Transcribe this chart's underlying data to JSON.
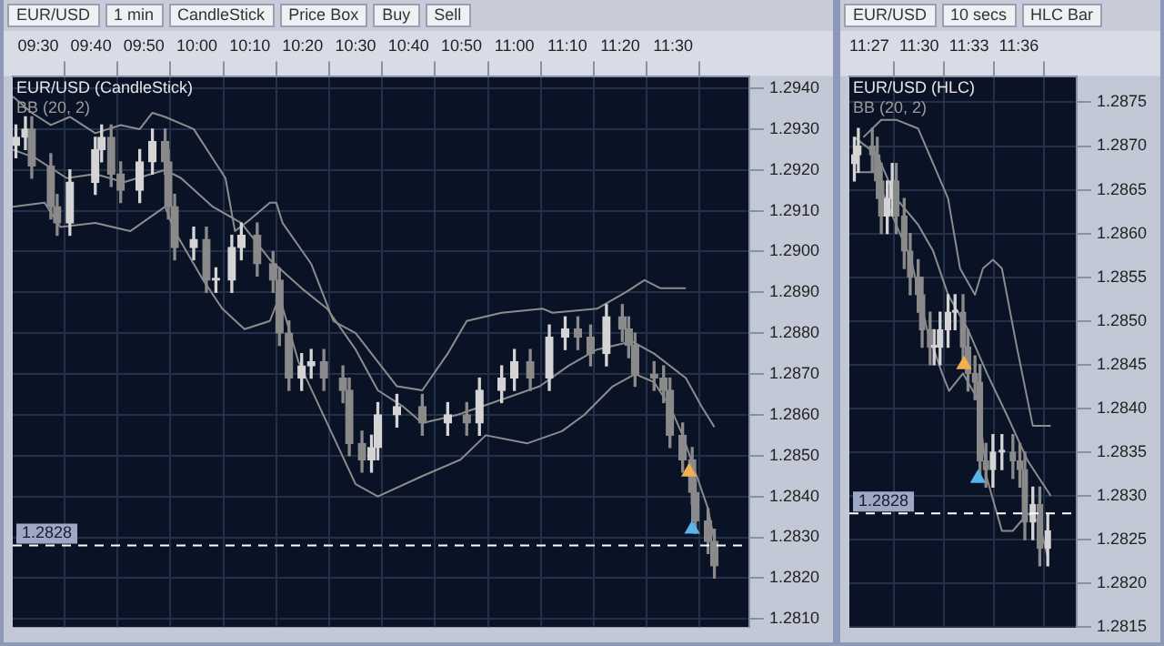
{
  "chart_data": [
    {
      "type": "candlestick",
      "title": "EUR/USD (CandleStick)",
      "subtitle": "BB (20, 2)",
      "annotations": [
        "EUR/USD",
        "1 min",
        "CandleStick",
        "Price Box",
        "Buy",
        "Sell"
      ],
      "x": [
        9.43,
        9.46,
        9.48,
        9.54,
        9.56,
        9.6,
        9.68,
        9.7,
        9.73,
        9.76,
        9.82,
        9.86,
        9.9,
        9.91,
        9.93,
        9.99,
        10.03,
        10.06,
        10.11,
        10.14,
        10.19,
        10.24,
        10.26,
        10.29,
        10.33,
        10.36,
        10.4,
        10.46,
        10.48,
        10.52,
        10.55,
        10.57,
        10.63,
        10.71,
        10.79,
        10.85,
        10.89,
        10.96,
        11.0,
        11.05,
        11.11,
        11.16,
        11.2,
        11.24,
        11.29,
        11.34,
        11.36,
        11.38,
        11.44,
        11.47,
        11.49,
        11.53,
        11.56,
        11.57,
        11.61,
        11.63
      ],
      "ohlc": [
        [
          1.2926,
          1.2931,
          1.2923,
          1.2928
        ],
        [
          1.2928,
          1.2933,
          1.2925,
          1.293
        ],
        [
          1.293,
          1.2933,
          1.2918,
          1.2921
        ],
        [
          1.2921,
          1.2924,
          1.2908,
          1.2911
        ],
        [
          1.2911,
          1.2914,
          1.2904,
          1.2907
        ],
        [
          1.2907,
          1.292,
          1.2904,
          1.2917
        ],
        [
          1.2917,
          1.2928,
          1.2914,
          1.2925
        ],
        [
          1.2925,
          1.2931,
          1.2922,
          1.2928
        ],
        [
          1.2928,
          1.2931,
          1.2916,
          1.2919
        ],
        [
          1.2919,
          1.2922,
          1.2912,
          1.2915
        ],
        [
          1.2915,
          1.2925,
          1.2912,
          1.2922
        ],
        [
          1.2922,
          1.293,
          1.2919,
          1.2927
        ],
        [
          1.2927,
          1.293,
          1.2919,
          1.2922
        ],
        [
          1.2922,
          1.2925,
          1.2908,
          1.2911
        ],
        [
          1.2911,
          1.2914,
          1.2898,
          1.2901
        ],
        [
          1.2901,
          1.2906,
          1.2898,
          1.2903
        ],
        [
          1.2903,
          1.2906,
          1.289,
          1.2893
        ],
        [
          1.2893,
          1.2896,
          1.289,
          1.2893
        ],
        [
          1.2893,
          1.2904,
          1.289,
          1.2901
        ],
        [
          1.2901,
          1.2907,
          1.2898,
          1.2904
        ],
        [
          1.2904,
          1.2907,
          1.2894,
          1.2897
        ],
        [
          1.2897,
          1.29,
          1.289,
          1.2893
        ],
        [
          1.2893,
          1.2896,
          1.2877,
          1.288
        ],
        [
          1.288,
          1.2883,
          1.2866,
          1.2869
        ],
        [
          1.2869,
          1.2875,
          1.2866,
          1.2872
        ],
        [
          1.2872,
          1.2876,
          1.2869,
          1.2873
        ],
        [
          1.2873,
          1.2876,
          1.2866,
          1.2869
        ],
        [
          1.2869,
          1.2872,
          1.2863,
          1.2866
        ],
        [
          1.2866,
          1.2869,
          1.285,
          1.2853
        ],
        [
          1.2853,
          1.2856,
          1.2846,
          1.2849
        ],
        [
          1.2849,
          1.2855,
          1.2846,
          1.2852
        ],
        [
          1.2852,
          1.2863,
          1.2849,
          1.286
        ],
        [
          1.286,
          1.2865,
          1.2857,
          1.2862
        ],
        [
          1.2862,
          1.2865,
          1.2855,
          1.2858
        ],
        [
          1.2858,
          1.2863,
          1.2855,
          1.286
        ],
        [
          1.286,
          1.2863,
          1.2855,
          1.2858
        ],
        [
          1.2858,
          1.2869,
          1.2855,
          1.2866
        ],
        [
          1.2866,
          1.2872,
          1.2863,
          1.2869
        ],
        [
          1.2869,
          1.2876,
          1.2866,
          1.2873
        ],
        [
          1.2873,
          1.2876,
          1.2866,
          1.2869
        ],
        [
          1.2869,
          1.2882,
          1.2866,
          1.2879
        ],
        [
          1.2879,
          1.2884,
          1.2876,
          1.2881
        ],
        [
          1.2881,
          1.2884,
          1.2876,
          1.2879
        ],
        [
          1.2879,
          1.2882,
          1.2872,
          1.2875
        ],
        [
          1.2875,
          1.2887,
          1.2872,
          1.2884
        ],
        [
          1.2884,
          1.2887,
          1.2878,
          1.2881
        ],
        [
          1.2881,
          1.2884,
          1.2874,
          1.2877
        ],
        [
          1.2877,
          1.288,
          1.2867,
          1.287
        ],
        [
          1.287,
          1.2873,
          1.2866,
          1.2869
        ],
        [
          1.2869,
          1.2872,
          1.2863,
          1.2866
        ],
        [
          1.2866,
          1.2869,
          1.2852,
          1.2855
        ],
        [
          1.2855,
          1.2858,
          1.2846,
          1.2849
        ],
        [
          1.2849,
          1.2852,
          1.2838,
          1.2841
        ],
        [
          1.2841,
          1.2844,
          1.2831,
          1.2834
        ],
        [
          1.2834,
          1.2837,
          1.2826,
          1.2829
        ],
        [
          1.2829,
          1.2832,
          1.282,
          1.2823
        ]
      ],
      "series": [
        {
          "type": "line",
          "color": "#8c8c8c",
          "x": [
            9.42,
            9.48,
            9.54,
            9.6,
            9.68,
            9.76,
            9.82,
            9.86,
            9.9,
            9.99,
            10.09,
            10.12,
            10.17,
            10.23,
            10.25,
            10.27,
            10.36,
            10.43,
            10.5,
            10.57,
            10.63,
            10.71,
            10.79,
            10.85,
            10.96,
            11.09,
            11.12,
            11.26,
            11.35,
            11.41,
            11.46,
            11.51,
            11.54
          ],
          "values": [
            1.2938,
            1.2934,
            1.2931,
            1.2933,
            1.2929,
            1.2931,
            1.293,
            1.2934,
            1.2933,
            1.293,
            1.2918,
            1.2905,
            1.2908,
            1.2912,
            1.2912,
            1.2907,
            1.2897,
            1.2883,
            1.288,
            1.2873,
            1.2867,
            1.2866,
            1.2875,
            1.2883,
            1.2885,
            1.2886,
            1.2885,
            1.2886,
            1.289,
            1.2893,
            1.2891,
            1.2891,
            1.2891
          ]
        },
        {
          "type": "line",
          "color": "#8c8c8c",
          "x": [
            9.42,
            9.49,
            9.59,
            9.68,
            9.77,
            9.9,
            9.95,
            10.05,
            10.14,
            10.23,
            10.33,
            10.41,
            10.5,
            10.57,
            10.65,
            10.71,
            10.82,
            10.97,
            11.08,
            11.17,
            11.26,
            11.37,
            11.44,
            11.54,
            11.59,
            11.63
          ],
          "values": [
            1.2925,
            1.2923,
            1.2918,
            1.2919,
            1.2917,
            1.292,
            1.2918,
            1.2911,
            1.2907,
            1.2898,
            1.2891,
            1.2886,
            1.2876,
            1.2866,
            1.2862,
            1.2858,
            1.286,
            1.2864,
            1.2867,
            1.2872,
            1.2876,
            1.2878,
            1.2875,
            1.2869,
            1.2862,
            1.2857
          ]
        },
        {
          "type": "line",
          "color": "#8c8c8c",
          "x": [
            9.42,
            9.52,
            9.57,
            9.68,
            9.79,
            9.9,
            9.93,
            10.02,
            10.08,
            10.15,
            10.23,
            10.26,
            10.32,
            10.41,
            10.5,
            10.57,
            10.71,
            10.83,
            10.91,
            11.04,
            11.15,
            11.22,
            11.31,
            11.38,
            11.44,
            11.49,
            11.53,
            11.57,
            11.61,
            11.63
          ],
          "values": [
            1.2911,
            1.2912,
            1.2906,
            1.2907,
            1.2905,
            1.2911,
            1.2905,
            1.2893,
            1.2886,
            1.2881,
            1.2883,
            1.2889,
            1.2873,
            1.2858,
            1.2843,
            1.284,
            1.2845,
            1.2849,
            1.2855,
            1.2853,
            1.2856,
            1.286,
            1.2867,
            1.287,
            1.2868,
            1.2862,
            1.2855,
            1.2846,
            1.2837,
            1.2829
          ]
        },
        {
          "type": "scatter",
          "marker": "triangle",
          "color": "#f0b050",
          "x": [
            11.55
          ],
          "values": [
            1.2846
          ]
        },
        {
          "type": "scatter",
          "marker": "triangle",
          "color": "#5ab4e8",
          "x": [
            11.56
          ],
          "values": [
            1.2832
          ]
        }
      ],
      "xlim": [
        9.42,
        11.74
      ],
      "xticks": [
        {
          "value": 9.5,
          "label": "09:30"
        },
        {
          "value": 9.6667,
          "label": "09:40"
        },
        {
          "value": 9.8333,
          "label": "09:50"
        },
        {
          "value": 10,
          "label": "10:00"
        },
        {
          "value": 10.1667,
          "label": "10:10"
        },
        {
          "value": 10.3333,
          "label": "10:20"
        },
        {
          "value": 10.5,
          "label": "10:30"
        },
        {
          "value": 10.6667,
          "label": "10:40"
        },
        {
          "value": 10.8333,
          "label": "10:50"
        },
        {
          "value": 11,
          "label": "11:00"
        },
        {
          "value": 11.1667,
          "label": "11:10"
        },
        {
          "value": 11.3333,
          "label": "11:20"
        },
        {
          "value": 11.5,
          "label": "11:30"
        }
      ],
      "ylim": [
        1.2808,
        1.2943
      ],
      "yticks": [
        {
          "value": 1.281,
          "label": "1.2810"
        },
        {
          "value": 1.282,
          "label": "1.2820"
        },
        {
          "value": 1.283,
          "label": "1.2830"
        },
        {
          "value": 1.284,
          "label": "1.2840"
        },
        {
          "value": 1.285,
          "label": "1.2850"
        },
        {
          "value": 1.286,
          "label": "1.2860"
        },
        {
          "value": 1.287,
          "label": "1.2870"
        },
        {
          "value": 1.288,
          "label": "1.2880"
        },
        {
          "value": 1.289,
          "label": "1.2890"
        },
        {
          "value": 1.29,
          "label": "1.2900"
        },
        {
          "value": 1.291,
          "label": "1.2910"
        },
        {
          "value": 1.292,
          "label": "1.2920"
        },
        {
          "value": 1.293,
          "label": "1.2930"
        },
        {
          "value": 1.294,
          "label": "1.2940"
        }
      ],
      "ref_lines": [
        {
          "axis": "y",
          "value": 1.2828,
          "label": "1.2828",
          "color": "#ffffff",
          "line_style": "dashed"
        }
      ],
      "grid": true
    },
    {
      "type": "candlestick",
      "title": "EUR/USD (HLC)",
      "subtitle": "BB (20, 2)",
      "annotations": [
        "EUR/USD",
        "10 secs",
        "HLC Bar"
      ],
      "x": [
        11.435,
        11.439,
        11.453,
        11.458,
        11.462,
        11.468,
        11.473,
        11.477,
        11.485,
        11.491,
        11.499,
        11.503,
        11.511,
        11.515,
        11.521,
        11.529,
        11.536,
        11.544,
        11.549,
        11.556,
        11.561,
        11.567,
        11.574,
        11.583,
        11.594,
        11.601,
        11.606,
        11.614,
        11.621,
        11.629
      ],
      "ohlc": [
        [
          1.2868,
          1.2871,
          1.2866,
          1.2869
        ],
        [
          1.2869,
          1.2872,
          1.2867,
          1.287
        ],
        [
          1.287,
          1.2872,
          1.2867,
          1.2869
        ],
        [
          1.2869,
          1.2871,
          1.2864,
          1.2866
        ],
        [
          1.2866,
          1.2868,
          1.286,
          1.2862
        ],
        [
          1.2862,
          1.2866,
          1.286,
          1.2864
        ],
        [
          1.2864,
          1.2868,
          1.2862,
          1.2866
        ],
        [
          1.2866,
          1.2868,
          1.286,
          1.2862
        ],
        [
          1.2862,
          1.2864,
          1.2856,
          1.2858
        ],
        [
          1.2858,
          1.286,
          1.2853,
          1.2855
        ],
        [
          1.2855,
          1.2857,
          1.2851,
          1.2853
        ],
        [
          1.2853,
          1.2855,
          1.2847,
          1.2849
        ],
        [
          1.2849,
          1.2851,
          1.2845,
          1.2847
        ],
        [
          1.2847,
          1.2849,
          1.2845,
          1.2847
        ],
        [
          1.2847,
          1.2851,
          1.2845,
          1.2849
        ],
        [
          1.2849,
          1.2853,
          1.2847,
          1.2851
        ],
        [
          1.2851,
          1.2853,
          1.2849,
          1.2851
        ],
        [
          1.2851,
          1.2853,
          1.2845,
          1.2847
        ],
        [
          1.2847,
          1.2849,
          1.2842,
          1.2844
        ],
        [
          1.2844,
          1.2846,
          1.2841,
          1.2843
        ],
        [
          1.2843,
          1.2845,
          1.2832,
          1.2834
        ],
        [
          1.2834,
          1.2836,
          1.2831,
          1.2833
        ],
        [
          1.2833,
          1.2837,
          1.2831,
          1.2835
        ],
        [
          1.2835,
          1.2837,
          1.2833,
          1.2835
        ],
        [
          1.2835,
          1.2837,
          1.2832,
          1.2834
        ],
        [
          1.2834,
          1.2836,
          1.2831,
          1.2833
        ],
        [
          1.2833,
          1.2835,
          1.2825,
          1.2827
        ],
        [
          1.2827,
          1.2831,
          1.2825,
          1.2829
        ],
        [
          1.2829,
          1.2831,
          1.2822,
          1.2824
        ],
        [
          1.2824,
          1.2828,
          1.2822,
          1.2826
        ]
      ],
      "series": [
        {
          "type": "line",
          "color": "#8c8c8c",
          "x": [
            11.444,
            11.462,
            11.477,
            11.499,
            11.514,
            11.529,
            11.541,
            11.556,
            11.564,
            11.574,
            11.583,
            11.598,
            11.614,
            11.624,
            11.632
          ],
          "values": [
            1.2871,
            1.2873,
            1.2873,
            1.2872,
            1.2868,
            1.2864,
            1.2856,
            1.2853,
            1.2856,
            1.2857,
            1.2856,
            1.2847,
            1.2838,
            1.2838,
            1.2838
          ]
        },
        {
          "type": "line",
          "color": "#8c8c8c",
          "x": [
            11.435,
            11.458,
            11.477,
            11.499,
            11.514,
            11.529,
            11.549,
            11.568,
            11.589,
            11.609,
            11.632
          ],
          "values": [
            1.2871,
            1.2869,
            1.2864,
            1.2861,
            1.2858,
            1.2853,
            1.2849,
            1.2844,
            1.2839,
            1.2834,
            1.283
          ]
        },
        {
          "type": "line",
          "color": "#8c8c8c",
          "x": [
            11.435,
            11.455,
            11.477,
            11.492,
            11.508,
            11.523,
            11.53,
            11.544,
            11.559,
            11.568,
            11.583,
            11.594,
            11.609,
            11.62,
            11.629
          ],
          "values": [
            1.2867,
            1.2867,
            1.2861,
            1.2857,
            1.2849,
            1.2844,
            1.2842,
            1.2844,
            1.2841,
            1.2832,
            1.2826,
            1.2826,
            1.2828,
            1.2827,
            1.2823
          ]
        },
        {
          "type": "scatter",
          "marker": "triangle",
          "color": "#f0b050",
          "x": [
            11.545
          ],
          "values": [
            1.2845
          ]
        },
        {
          "type": "scatter",
          "marker": "triangle",
          "color": "#5ab4e8",
          "x": [
            11.559
          ],
          "values": [
            1.2832
          ]
        }
      ],
      "xlim": [
        11.43,
        11.658
      ],
      "xticks": [
        {
          "value": 11.45,
          "label": "11:27"
        },
        {
          "value": 11.5,
          "label": "11:30"
        },
        {
          "value": 11.55,
          "label": "11:33"
        },
        {
          "value": 11.6,
          "label": "11:36"
        }
      ],
      "ylim": [
        1.2815,
        1.2878
      ],
      "yticks": [
        {
          "value": 1.2815,
          "label": "1.2815"
        },
        {
          "value": 1.282,
          "label": "1.2820"
        },
        {
          "value": 1.2825,
          "label": "1.2825"
        },
        {
          "value": 1.283,
          "label": "1.2830"
        },
        {
          "value": 1.2835,
          "label": "1.2835"
        },
        {
          "value": 1.284,
          "label": "1.2840"
        },
        {
          "value": 1.2845,
          "label": "1.2845"
        },
        {
          "value": 1.285,
          "label": "1.2850"
        },
        {
          "value": 1.2855,
          "label": "1.2855"
        },
        {
          "value": 1.286,
          "label": "1.2860"
        },
        {
          "value": 1.2865,
          "label": "1.2865"
        },
        {
          "value": 1.287,
          "label": "1.2870"
        },
        {
          "value": 1.2875,
          "label": "1.2875"
        }
      ],
      "ref_lines": [
        {
          "axis": "y",
          "value": 1.2828,
          "label": "1.2828",
          "color": "#ffffff",
          "line_style": "dashed"
        }
      ],
      "grid": true
    }
  ]
}
